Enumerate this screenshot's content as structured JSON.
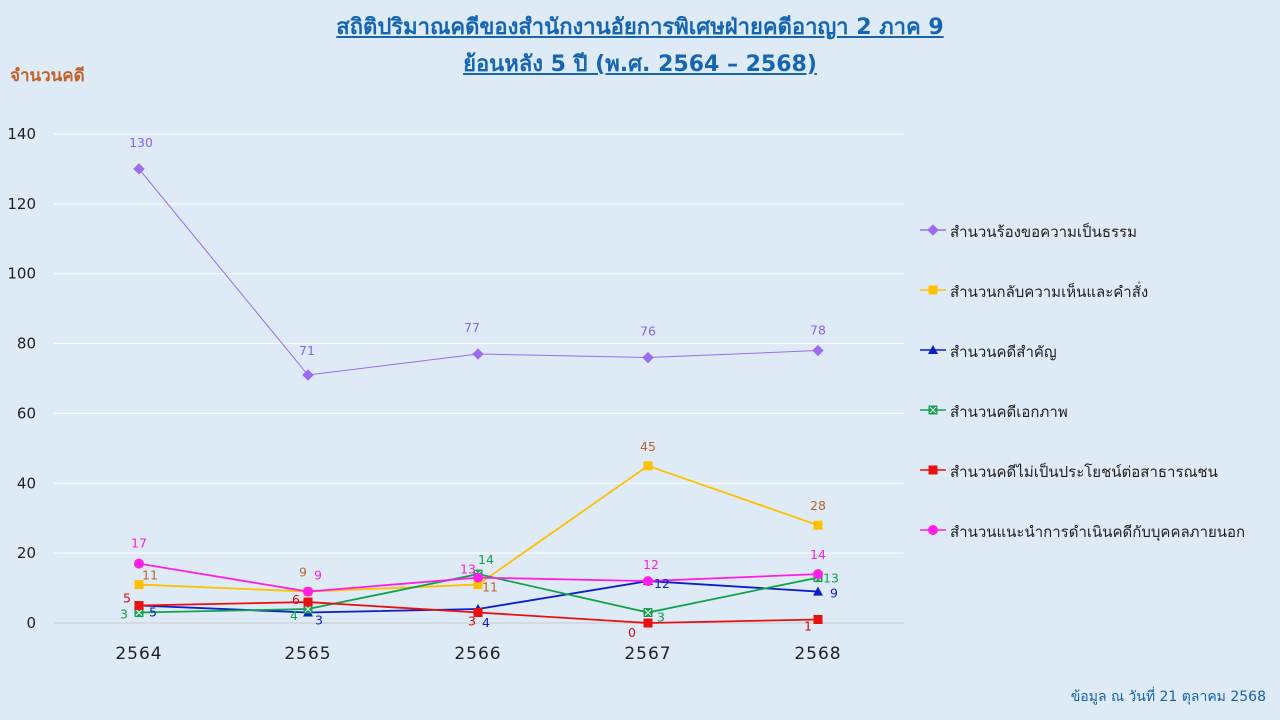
{
  "header": {
    "title_line1": "สถิติปริมาณคดีของสำนักงานอัยการพิเศษฝ่ายคดีอาญา 2 ภาค 9",
    "title_line2": "ย้อนหลัง 5 ปี (พ.ศ. 2564 – 2568)"
  },
  "footer": {
    "note": "ข้อมูล ณ วันที่ 21 ตุลาคม 2568"
  },
  "chart_data": {
    "type": "line",
    "title": "สถิติปริมาณคดีของสำนักงานอัยการพิเศษฝ่ายคดีอาญา 2 ภาค 9 ย้อนหลัง 5 ปี (พ.ศ. 2564 – 2568)",
    "ylabel": "จำนวนคดี",
    "xlabel": "",
    "categories": [
      "2564",
      "2565",
      "2566",
      "2567",
      "2568"
    ],
    "ylim": [
      0,
      140
    ],
    "yticks": [
      0,
      20,
      40,
      60,
      80,
      100,
      120,
      140
    ],
    "grid": "horizontal",
    "legend_position": "right",
    "series": [
      {
        "name": "สำนวนร้องขอความเป็นธรรม",
        "values": [
          130,
          71,
          77,
          76,
          78
        ],
        "color": "#9b6cf0",
        "marker": "diamond",
        "label_color": "#8b63e8"
      },
      {
        "name": "สำนวนกลับความเห็นและคำสั่ง",
        "values": [
          11,
          9,
          11,
          45,
          28
        ],
        "color": "#ffc000",
        "marker": "square",
        "label_color": "#b8662a"
      },
      {
        "name": "สำนวนคดีสำคัญ",
        "values": [
          5,
          3,
          4,
          12,
          9
        ],
        "color": "#0a1fcc",
        "marker": "triangle",
        "label_color": "#0a1fcc"
      },
      {
        "name": "สำนวนคดีเอกภาพ",
        "values": [
          3,
          4,
          14,
          3,
          13
        ],
        "color": "#13a24a",
        "marker": "square-x",
        "label_color": "#13a24a"
      },
      {
        "name": "สำนวนคดีไม่เป็นประโยชน์ต่อสาธารณชน",
        "values": [
          5,
          6,
          3,
          0,
          1
        ],
        "color": "#e81010",
        "marker": "square",
        "label_color": "#d01010"
      },
      {
        "name": "สำนวนแนะนำการดำเนินคดีกับบุคคลภายนอก",
        "values": [
          17,
          9,
          13,
          12,
          14
        ],
        "color": "#ff1ee6",
        "marker": "circle",
        "label_color": "#ff1ee6"
      }
    ]
  }
}
